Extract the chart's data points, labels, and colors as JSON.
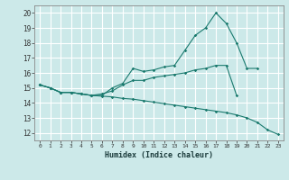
{
  "background_color": "#cce9e9",
  "grid_color": "#ffffff",
  "line_color": "#1a7a6e",
  "xlabel": "Humidex (Indice chaleur)",
  "xlim": [
    -0.5,
    23.5
  ],
  "ylim": [
    11.5,
    20.5
  ],
  "yticks": [
    12,
    13,
    14,
    15,
    16,
    17,
    18,
    19,
    20
  ],
  "xticks": [
    0,
    1,
    2,
    3,
    4,
    5,
    6,
    7,
    8,
    9,
    10,
    11,
    12,
    13,
    14,
    15,
    16,
    17,
    18,
    19,
    20,
    21,
    22,
    23
  ],
  "line1_x": [
    0,
    1,
    2,
    3,
    4,
    5,
    6,
    7,
    8,
    9,
    10,
    11,
    12,
    13,
    14,
    15,
    16,
    17,
    18,
    19,
    20,
    21
  ],
  "line1_y": [
    15.2,
    15.0,
    14.7,
    14.7,
    14.6,
    14.5,
    14.5,
    15.0,
    15.3,
    16.3,
    16.1,
    16.2,
    16.4,
    16.5,
    17.5,
    18.5,
    19.0,
    20.0,
    19.3,
    18.0,
    16.3,
    16.3
  ],
  "line2_x": [
    0,
    1,
    2,
    3,
    4,
    5,
    6,
    7,
    8,
    9,
    10,
    11,
    12,
    13,
    14,
    15,
    16,
    17,
    18,
    19
  ],
  "line2_y": [
    15.2,
    15.0,
    14.7,
    14.7,
    14.6,
    14.5,
    14.6,
    14.8,
    15.2,
    15.5,
    15.5,
    15.7,
    15.8,
    15.9,
    16.0,
    16.2,
    16.3,
    16.5,
    16.5,
    14.5
  ],
  "line3_x": [
    0,
    1,
    2,
    3,
    4,
    5,
    6,
    7,
    8,
    9,
    10,
    11,
    12,
    13,
    14,
    15,
    16,
    17,
    18,
    19,
    20,
    21,
    22,
    23
  ],
  "line3_y": [
    15.2,
    15.0,
    14.7,
    14.7,
    14.6,
    14.5,
    14.45,
    14.4,
    14.3,
    14.25,
    14.15,
    14.05,
    13.95,
    13.85,
    13.75,
    13.65,
    13.55,
    13.45,
    13.35,
    13.2,
    13.0,
    12.7,
    12.2,
    11.9
  ]
}
